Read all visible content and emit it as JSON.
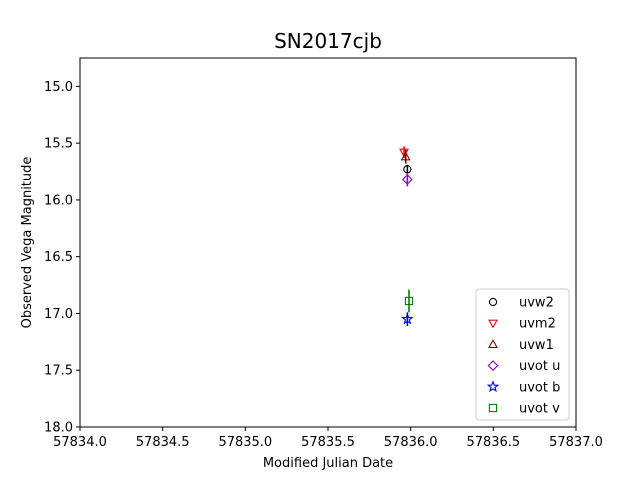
{
  "chart_data": {
    "type": "scatter",
    "title": "SN2017cjb",
    "xlabel": "Modified Julian Date",
    "ylabel": "Observed Vega Magnitude",
    "xlim": [
      57834.0,
      57837.0
    ],
    "ylim": [
      18.0,
      14.75
    ],
    "y_inverted": true,
    "xticks": [
      57834.0,
      57834.5,
      57835.0,
      57835.5,
      57836.0,
      57836.5,
      57837.0
    ],
    "xtick_labels": [
      "57834.0",
      "57834.5",
      "57835.0",
      "57835.5",
      "57836.0",
      "57836.5",
      "57837.0"
    ],
    "yticks": [
      15.0,
      15.5,
      16.0,
      16.5,
      17.0,
      17.5,
      18.0
    ],
    "ytick_labels": [
      "15.0",
      "15.5",
      "16.0",
      "16.5",
      "17.0",
      "17.5",
      "18.0"
    ],
    "grid": false,
    "legend_position": "lower-right",
    "series": [
      {
        "name": "uvw2",
        "marker": "circle",
        "color": "#000000",
        "points": [
          {
            "x": 57835.98,
            "y": 15.73,
            "err": 0.04
          }
        ]
      },
      {
        "name": "uvm2",
        "marker": "triangle-down",
        "color": "#ff0000",
        "points": [
          {
            "x": 57835.96,
            "y": 15.58,
            "err": 0.05
          }
        ]
      },
      {
        "name": "uvw1",
        "marker": "triangle-up",
        "color": "#800000",
        "points": [
          {
            "x": 57835.97,
            "y": 15.62,
            "err": 0.06
          }
        ]
      },
      {
        "name": "uvot u",
        "marker": "diamond",
        "color": "#9400d3",
        "points": [
          {
            "x": 57835.98,
            "y": 15.82,
            "err": 0.06
          }
        ]
      },
      {
        "name": "uvot b",
        "marker": "star",
        "color": "#0000ff",
        "points": [
          {
            "x": 57835.98,
            "y": 17.05,
            "err": 0.06
          }
        ]
      },
      {
        "name": "uvot v",
        "marker": "square",
        "color": "#008000",
        "points": [
          {
            "x": 57835.99,
            "y": 16.89,
            "err": 0.1
          }
        ]
      }
    ]
  }
}
